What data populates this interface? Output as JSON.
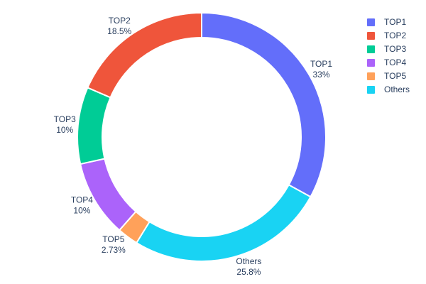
{
  "figure": {
    "background": "#ffffff",
    "font_color": "#2a3f5f",
    "slice_border_color": "#ffffff",
    "chart_data": {
      "type": "pie",
      "hole": 0.8,
      "rotation_deg": 0,
      "labels": [
        "TOP1",
        "TOP2",
        "TOP3",
        "TOP4",
        "TOP5",
        "Others"
      ],
      "values": [
        33,
        18.5,
        10,
        10,
        2.73,
        25.8
      ],
      "percent_labels": [
        "33%",
        "18.5%",
        "10%",
        "10%",
        "2.73%",
        "25.8%"
      ],
      "colors": [
        "#636efa",
        "#ef553b",
        "#00cc96",
        "#ab63fa",
        "#ffa15a",
        "#19d3f3"
      ],
      "clockwise_order": [
        0,
        5,
        4,
        3,
        2,
        1
      ],
      "legend_position": "right",
      "legend_entries": [
        "TOP1",
        "TOP2",
        "TOP3",
        "TOP4",
        "TOP5",
        "Others"
      ]
    }
  }
}
